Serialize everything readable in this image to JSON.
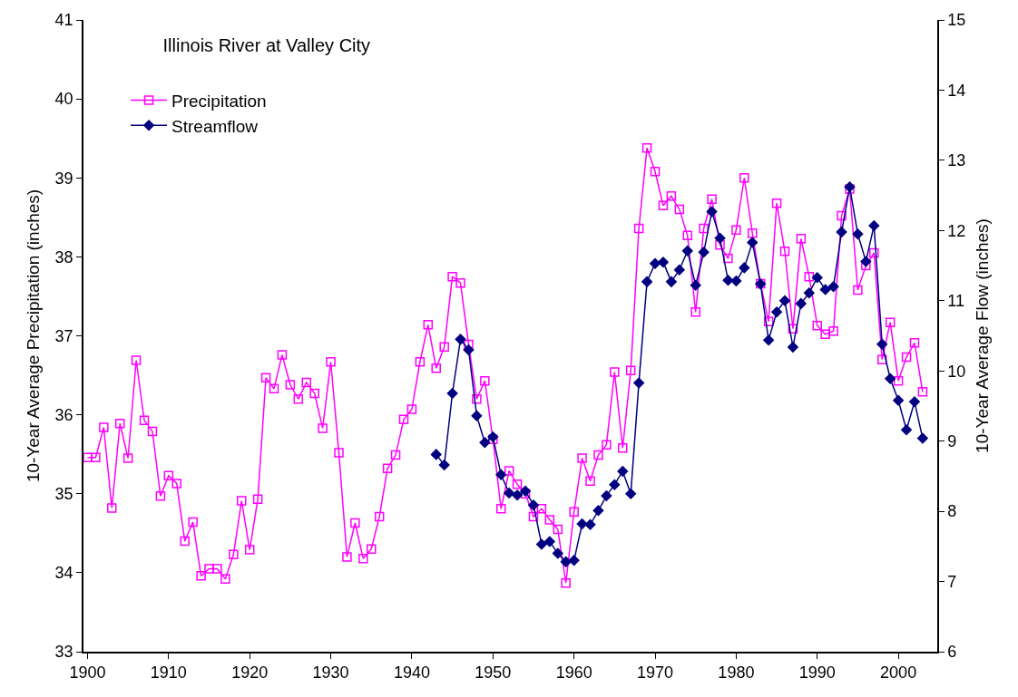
{
  "chart_data": {
    "type": "line",
    "title": "Illinois River at Valley City",
    "xlabel": null,
    "ylabel": "10-Year Average Precipitation (inches)",
    "y2label": "10-Year Average Flow (inches)",
    "xlim": [
      1899.5,
      2004.8
    ],
    "xticks": [
      1900,
      1910,
      1920,
      1930,
      1940,
      1950,
      1960,
      1970,
      1980,
      1990,
      2000
    ],
    "ylim": [
      33,
      41
    ],
    "yticks": [
      33,
      34,
      35,
      36,
      37,
      38,
      39,
      40,
      41
    ],
    "y2lim": [
      6,
      15
    ],
    "y2ticks": [
      6,
      7,
      8,
      9,
      10,
      11,
      12,
      13,
      14,
      15
    ],
    "legend": "top left",
    "series": [
      {
        "name": "Precipitation",
        "color": "#ff00ff",
        "marker": "square",
        "axis": "y",
        "x": [
          1900,
          1901,
          1902,
          1903,
          1904,
          1905,
          1906,
          1907,
          1908,
          1909,
          1910,
          1911,
          1912,
          1913,
          1914,
          1915,
          1916,
          1917,
          1918,
          1919,
          1920,
          1921,
          1922,
          1923,
          1924,
          1925,
          1926,
          1927,
          1928,
          1929,
          1930,
          1931,
          1932,
          1933,
          1934,
          1935,
          1936,
          1937,
          1938,
          1939,
          1940,
          1941,
          1942,
          1943,
          1944,
          1945,
          1946,
          1947,
          1948,
          1949,
          1950,
          1951,
          1952,
          1953,
          1954,
          1955,
          1956,
          1957,
          1958,
          1959,
          1960,
          1961,
          1962,
          1963,
          1964,
          1965,
          1966,
          1967,
          1968,
          1969,
          1970,
          1971,
          1972,
          1973,
          1974,
          1975,
          1976,
          1977,
          1978,
          1979,
          1980,
          1981,
          1982,
          1983,
          1984,
          1985,
          1986,
          1987,
          1988,
          1989,
          1990,
          1991,
          1992,
          1993,
          1994,
          1995,
          1996,
          1997,
          1998,
          1999,
          2000,
          2001,
          2002,
          2003
        ],
        "values": [
          35.46,
          35.46,
          35.84,
          34.82,
          35.89,
          35.45,
          36.69,
          35.93,
          35.79,
          34.97,
          35.23,
          35.13,
          34.4,
          34.64,
          33.96,
          34.05,
          34.05,
          33.92,
          34.23,
          34.91,
          34.29,
          34.93,
          36.47,
          36.33,
          36.76,
          36.38,
          36.2,
          36.41,
          36.27,
          35.83,
          36.67,
          35.52,
          34.2,
          34.63,
          34.18,
          34.3,
          34.71,
          35.32,
          35.49,
          35.94,
          36.07,
          36.67,
          37.14,
          36.59,
          36.86,
          37.75,
          37.67,
          36.89,
          36.2,
          36.43,
          35.69,
          34.81,
          35.29,
          35.12,
          35.0,
          34.71,
          34.81,
          34.67,
          34.55,
          33.87,
          34.77,
          35.45,
          35.16,
          35.49,
          35.62,
          36.54,
          35.58,
          36.56,
          38.36,
          39.38,
          39.08,
          38.65,
          38.77,
          38.6,
          38.27,
          37.3,
          38.36,
          38.73,
          38.15,
          37.98,
          38.34,
          39.0,
          38.3,
          37.66,
          37.18,
          38.68,
          38.07,
          37.09,
          38.23,
          37.75,
          37.13,
          37.02,
          37.06,
          38.52,
          38.86,
          37.58,
          37.89,
          38.05,
          36.7,
          37.17,
          36.43,
          36.73,
          36.91,
          36.29
        ]
      },
      {
        "name": "Streamflow",
        "color": "#000080",
        "marker": "diamond",
        "axis": "y2",
        "x": [
          1943,
          1944,
          1945,
          1946,
          1947,
          1948,
          1949,
          1950,
          1951,
          1952,
          1953,
          1954,
          1955,
          1956,
          1957,
          1958,
          1959,
          1960,
          1961,
          1962,
          1963,
          1964,
          1965,
          1966,
          1967,
          1968,
          1969,
          1970,
          1971,
          1972,
          1973,
          1974,
          1975,
          1976,
          1977,
          1978,
          1979,
          1980,
          1981,
          1982,
          1983,
          1984,
          1985,
          1986,
          1987,
          1988,
          1989,
          1990,
          1991,
          1992,
          1993,
          1994,
          1995,
          1996,
          1997,
          1998,
          1999,
          2000,
          2001,
          2002,
          2003
        ],
        "values": [
          8.81,
          8.66,
          9.68,
          10.45,
          10.3,
          9.36,
          8.98,
          9.06,
          8.52,
          8.26,
          8.23,
          8.29,
          8.09,
          7.53,
          7.57,
          7.4,
          7.28,
          7.3,
          7.82,
          7.81,
          8.01,
          8.22,
          8.38,
          8.57,
          8.25,
          9.83,
          11.27,
          11.53,
          11.55,
          11.27,
          11.44,
          11.71,
          11.22,
          11.69,
          12.27,
          11.89,
          11.29,
          11.28,
          11.47,
          11.83,
          11.24,
          10.44,
          10.84,
          11.0,
          10.34,
          10.96,
          11.11,
          11.33,
          11.16,
          11.2,
          11.98,
          12.62,
          11.95,
          11.56,
          12.07,
          10.38,
          9.89,
          9.58,
          9.16,
          9.56,
          9.04
        ]
      }
    ]
  }
}
